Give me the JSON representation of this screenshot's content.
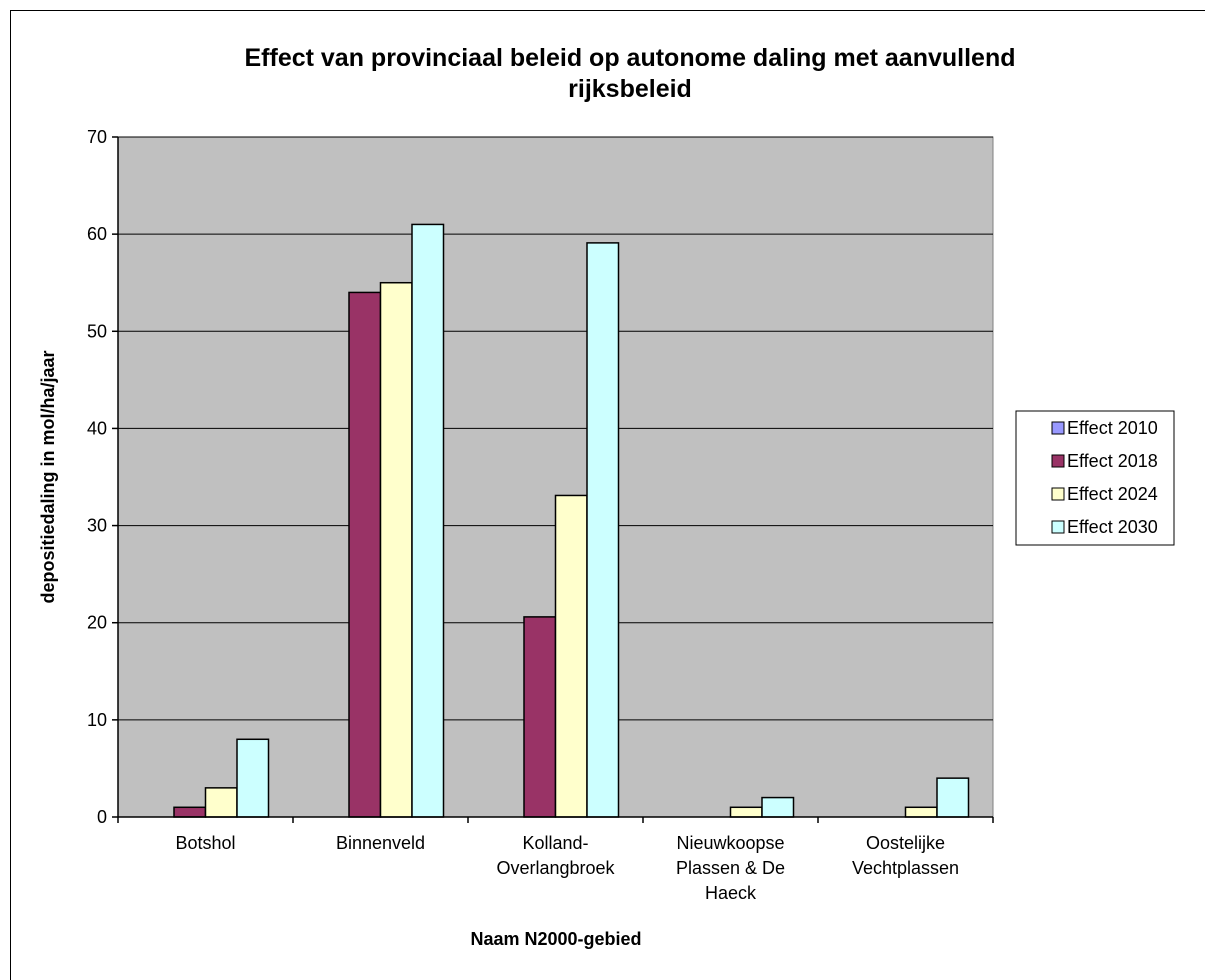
{
  "chart_data": {
    "type": "bar",
    "title_lines": [
      "Effect van provinciaal beleid op autonome daling met aanvullend",
      "rijksbeleid"
    ],
    "xlabel": "Naam N2000-gebied",
    "ylabel": "depositiedaling in mol/ha/jaar",
    "ylim": [
      0,
      70
    ],
    "yticks": [
      0,
      10,
      20,
      30,
      40,
      50,
      60,
      70
    ],
    "grid": true,
    "legend_position": "right",
    "categories": [
      [
        "Botshol"
      ],
      [
        "Binnenveld"
      ],
      [
        "Kolland-",
        "Overlangbroek"
      ],
      [
        "Nieuwkoopse",
        "Plassen & De",
        "Haeck"
      ],
      [
        "Oostelijke",
        "Vechtplassen"
      ]
    ],
    "series": [
      {
        "name": "Effect 2010",
        "color": "#9999ff",
        "values": [
          0,
          0,
          0,
          0,
          0
        ]
      },
      {
        "name": "Effect 2018",
        "color": "#993366",
        "values": [
          1,
          54,
          20.6,
          0,
          0
        ]
      },
      {
        "name": "Effect 2024",
        "color": "#ffffcc",
        "values": [
          3,
          55,
          33.1,
          1,
          1
        ]
      },
      {
        "name": "Effect 2030",
        "color": "#ccffff",
        "values": [
          8,
          61,
          59.1,
          2,
          4
        ]
      }
    ],
    "plot_background": "#c0c0c0"
  }
}
